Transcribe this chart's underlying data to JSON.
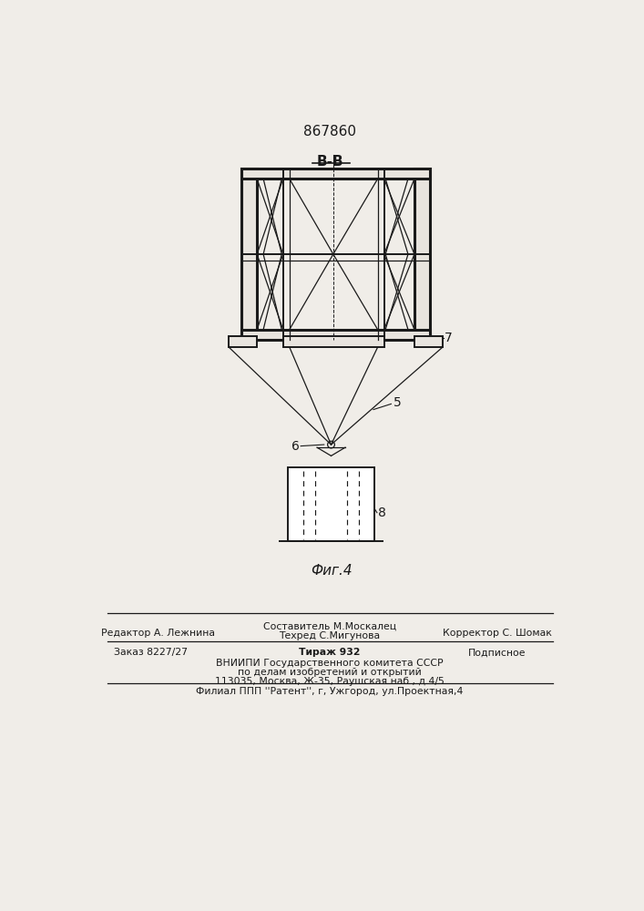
{
  "patent_number": "867860",
  "section_label": "В-В",
  "fig_label": "Фиг.4",
  "label_7": "7",
  "label_5": "5",
  "label_6": "6",
  "label_8": "8",
  "bg_color": "#f0ede8",
  "line_color": "#1a1a1a",
  "footer_text_compositor": "Составитель М.Москалец",
  "footer_text_techred": "Техред С.Мигунова",
  "footer_text_editor": "Редактор А. Лежнина",
  "footer_text_corrector": "Корректор С. Шомак",
  "footer_text_order": "Заказ 8227/27",
  "footer_text_tirazh": "Тираж 932",
  "footer_text_podpisnoe": "Подписное",
  "footer_text1": "ВНИИПИ Государственного комитета СССР",
  "footer_text2": "по делам изобретений и открытий",
  "footer_text3": "113035, Москва, Ж-35, Раушская наб., д.4/5",
  "footer_text4": "Филиал ППП ''Pатент'', г, Ужгород, ул.Проектная,4"
}
